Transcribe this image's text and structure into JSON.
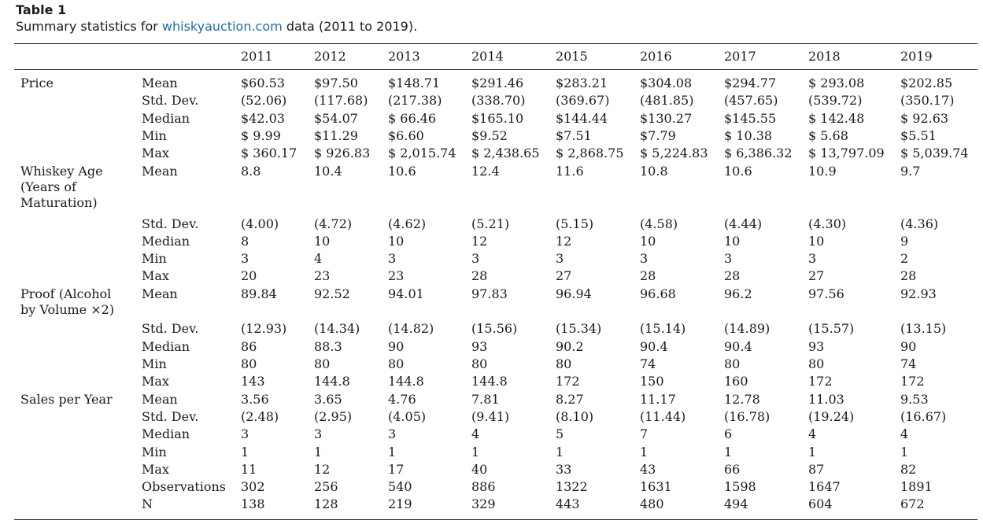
{
  "table_label": "Table 1",
  "caption": {
    "prefix": "Summary statistics for ",
    "link": "whiskyauction.com",
    "suffix": " data (2011 to 2019)."
  },
  "years": [
    "2011",
    "2012",
    "2013",
    "2014",
    "2015",
    "2016",
    "2017",
    "2018",
    "2019"
  ],
  "groups": [
    {
      "label": "Price",
      "rows": [
        {
          "stat": "Mean",
          "values": [
            "$60.53",
            "$97.50",
            "$148.71",
            "$291.46",
            "$283.21",
            "$304.08",
            "$294.77",
            "$ 293.08",
            "$202.85"
          ]
        },
        {
          "stat": "Std. Dev.",
          "values": [
            "(52.06)",
            "(117.68)",
            "(217.38)",
            "(338.70)",
            "(369.67)",
            "(481.85)",
            "(457.65)",
            "(539.72)",
            "(350.17)"
          ]
        },
        {
          "stat": "Median",
          "values": [
            "$42.03",
            "$54.07",
            "$ 66.46",
            "$165.10",
            "$144.44",
            "$130.27",
            "$145.55",
            "$ 142.48",
            "$ 92.63"
          ]
        },
        {
          "stat": "Min",
          "values": [
            "$ 9.99",
            "$11.29",
            "$6.60",
            "$9.52",
            "$7.51",
            "$7.79",
            "$ 10.38",
            "$ 5.68",
            "$5.51"
          ]
        },
        {
          "stat": "Max",
          "values": [
            "$ 360.17",
            "$ 926.83",
            "$ 2,015.74",
            "$ 2,438.65",
            "$ 2,868.75",
            "$ 5,224.83",
            "$ 6,386.32",
            "$ 13,797.09",
            "$ 5,039.74"
          ]
        }
      ]
    },
    {
      "label": "Whiskey Age\n(Years of\nMaturation)",
      "rows": [
        {
          "stat": "Mean",
          "values": [
            "8.8",
            "10.4",
            "10.6",
            "12.4",
            "11.6",
            "10.8",
            "10.6",
            "10.9",
            "9.7"
          ]
        },
        {
          "stat": "Std. Dev.",
          "values": [
            "(4.00)",
            "(4.72)",
            "(4.62)",
            "(5.21)",
            "(5.15)",
            "(4.58)",
            "(4.44)",
            "(4.30)",
            "(4.36)"
          ]
        },
        {
          "stat": "Median",
          "values": [
            "8",
            "10",
            "10",
            "12",
            "12",
            "10",
            "10",
            "10",
            "9"
          ]
        },
        {
          "stat": "Min",
          "values": [
            "3",
            "4",
            "3",
            "3",
            "3",
            "3",
            "3",
            "3",
            "2"
          ]
        },
        {
          "stat": "Max",
          "values": [
            "20",
            "23",
            "23",
            "28",
            "27",
            "28",
            "28",
            "27",
            "28"
          ]
        }
      ]
    },
    {
      "label": "Proof (Alcohol\nby Volume ×2)",
      "rows": [
        {
          "stat": "Mean",
          "values": [
            "89.84",
            "92.52",
            "94.01",
            "97.83",
            "96.94",
            "96.68",
            "96.2",
            "97.56",
            "92.93"
          ]
        },
        {
          "stat": "Std. Dev.",
          "values": [
            "(12.93)",
            "(14.34)",
            "(14.82)",
            "(15.56)",
            "(15.34)",
            "(15.14)",
            "(14.89)",
            "(15.57)",
            "(13.15)"
          ]
        },
        {
          "stat": "Median",
          "values": [
            "86",
            "88.3",
            "90",
            "93",
            "90.2",
            "90.4",
            "90.4",
            "93",
            "90"
          ]
        },
        {
          "stat": "Min",
          "values": [
            "80",
            "80",
            "80",
            "80",
            "80",
            "74",
            "80",
            "80",
            "74"
          ]
        },
        {
          "stat": "Max",
          "values": [
            "143",
            "144.8",
            "144.8",
            "144.8",
            "172",
            "150",
            "160",
            "172",
            "172"
          ]
        }
      ]
    },
    {
      "label": "Sales per Year",
      "rows": [
        {
          "stat": "Mean",
          "values": [
            "3.56",
            "3.65",
            "4.76",
            "7.81",
            "8.27",
            "11.17",
            "12.78",
            "11.03",
            "9.53"
          ]
        },
        {
          "stat": "Std. Dev.",
          "values": [
            "(2.48)",
            "(2.95)",
            "(4.05)",
            "(9.41)",
            "(8.10)",
            "(11.44)",
            "(16.78)",
            "(19.24)",
            "(16.67)"
          ]
        },
        {
          "stat": "Median",
          "values": [
            "3",
            "3",
            "3",
            "4",
            "5",
            "7",
            "6",
            "4",
            "4"
          ]
        },
        {
          "stat": "Min",
          "values": [
            "1",
            "1",
            "1",
            "1",
            "1",
            "1",
            "1",
            "1",
            "1"
          ]
        },
        {
          "stat": "Max",
          "values": [
            "11",
            "12",
            "17",
            "40",
            "33",
            "43",
            "66",
            "87",
            "82"
          ]
        },
        {
          "stat": "Observations",
          "values": [
            "302",
            "256",
            "540",
            "886",
            "1322",
            "1631",
            "1598",
            "1647",
            "1891"
          ]
        },
        {
          "stat": "N",
          "values": [
            "138",
            "128",
            "219",
            "329",
            "443",
            "480",
            "494",
            "604",
            "672"
          ]
        }
      ]
    }
  ]
}
